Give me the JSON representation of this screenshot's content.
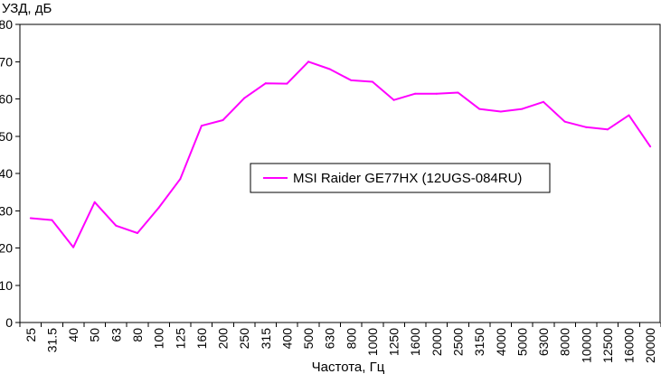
{
  "chart_data": {
    "type": "line",
    "title": "",
    "ylabel": "УЗД, дБ",
    "xlabel": "Частота, Гц",
    "ylim": [
      0,
      80
    ],
    "yticks": [
      0,
      10,
      20,
      30,
      40,
      50,
      60,
      70,
      80
    ],
    "grid": false,
    "legend_position": "center",
    "categories": [
      "25",
      "31.5",
      "40",
      "50",
      "63",
      "80",
      "100",
      "125",
      "160",
      "200",
      "250",
      "315",
      "400",
      "500",
      "630",
      "800",
      "1000",
      "1250",
      "1600",
      "2000",
      "2500",
      "3150",
      "4000",
      "5000",
      "6300",
      "8000",
      "10000",
      "12500",
      "16000",
      "20000"
    ],
    "series": [
      {
        "name": "MSI Raider GE77HX (12UGS-084RU)",
        "color": "#ff00ff",
        "values": [
          28.0,
          27.5,
          20.2,
          32.3,
          26.0,
          24.0,
          30.8,
          38.5,
          52.8,
          54.3,
          60.2,
          64.2,
          64.1,
          70.0,
          68.0,
          65.0,
          64.6,
          59.7,
          61.4,
          61.4,
          61.7,
          57.3,
          56.6,
          57.3,
          59.2,
          53.9,
          52.4,
          51.8,
          55.6,
          47.2
        ]
      }
    ]
  }
}
